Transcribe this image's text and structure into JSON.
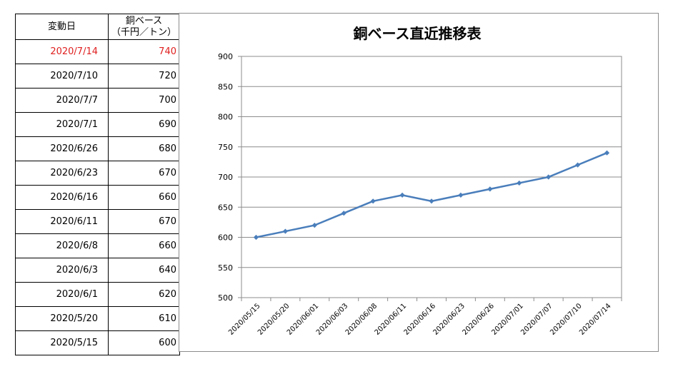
{
  "table": {
    "headers": {
      "date": "変動日",
      "value_line1": "銅ベース",
      "value_line2": "（千円／トン）"
    },
    "rows": [
      {
        "date": "2020/7/14",
        "value": "740",
        "highlight": true
      },
      {
        "date": "2020/7/10",
        "value": "720"
      },
      {
        "date": "2020/7/7",
        "value": "700"
      },
      {
        "date": "2020/7/1",
        "value": "690"
      },
      {
        "date": "2020/6/26",
        "value": "680"
      },
      {
        "date": "2020/6/23",
        "value": "670"
      },
      {
        "date": "2020/6/16",
        "value": "660"
      },
      {
        "date": "2020/6/11",
        "value": "670"
      },
      {
        "date": "2020/6/8",
        "value": "660"
      },
      {
        "date": "2020/6/3",
        "value": "640"
      },
      {
        "date": "2020/6/1",
        "value": "620"
      },
      {
        "date": "2020/5/20",
        "value": "610"
      },
      {
        "date": "2020/5/15",
        "value": "600"
      }
    ],
    "highlight_color": "#e02020"
  },
  "chart_data": {
    "type": "line",
    "title": "銅ベース直近推移表",
    "categories": [
      "2020/05/15",
      "2020/05/20",
      "2020/06/01",
      "2020/06/03",
      "2020/06/08",
      "2020/06/11",
      "2020/06/16",
      "2020/06/23",
      "2020/06/26",
      "2020/07/01",
      "2020/07/07",
      "2020/07/10",
      "2020/07/14"
    ],
    "series": [
      {
        "values": [
          600,
          610,
          620,
          640,
          660,
          670,
          660,
          670,
          680,
          690,
          700,
          720,
          740
        ]
      }
    ],
    "ylim": [
      500,
      900
    ],
    "yticks": [
      500,
      550,
      600,
      650,
      700,
      750,
      800,
      850,
      900
    ],
    "grid": true,
    "line_color": "#4a7ebb",
    "xlabel": "",
    "ylabel": ""
  }
}
